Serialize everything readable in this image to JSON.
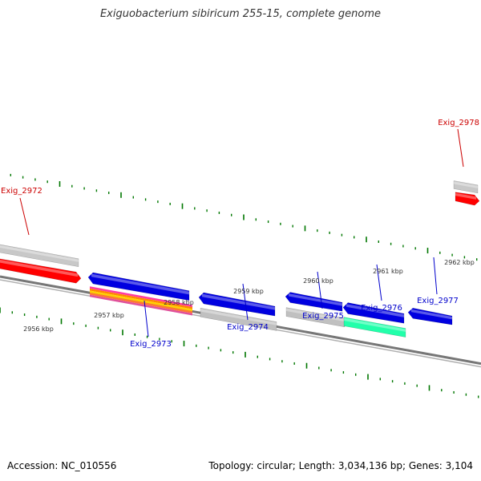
{
  "title": "Exiguobacterium sibiricum 255-15, complete genome",
  "footer": {
    "accession": "Accession: NC_010556",
    "topology": "Topology: circular; Length: 3,034,136 bp; Genes: 3,104"
  },
  "colors": {
    "forward_gene": "#ff0000",
    "forward_other": "#c8c8c8",
    "reverse_gene": "#0000e0",
    "reverse_other": "#c0c0c0",
    "reverse_special": "#22ffaa",
    "rna_stripe": [
      "#ff3aa0",
      "#ff8800",
      "#ffd000",
      "#ff7733",
      "#e0509a"
    ],
    "backbone": "#777777",
    "tick": "#007700",
    "forward_label": "#cc0000",
    "reverse_label": "#0000cc"
  },
  "scale_labels": [
    "2956 kbp",
    "2957 kbp",
    "2958 kbp",
    "2959 kbp",
    "2960 kbp",
    "2961 kbp",
    "2962 kbp"
  ],
  "gene_labels": {
    "forward": [
      "Exig_2972",
      "Exig_2978"
    ],
    "reverse": [
      "Exig_2973",
      "Exig_2974",
      "Exig_2975",
      "Exig_2976",
      "Exig_2977"
    ]
  }
}
